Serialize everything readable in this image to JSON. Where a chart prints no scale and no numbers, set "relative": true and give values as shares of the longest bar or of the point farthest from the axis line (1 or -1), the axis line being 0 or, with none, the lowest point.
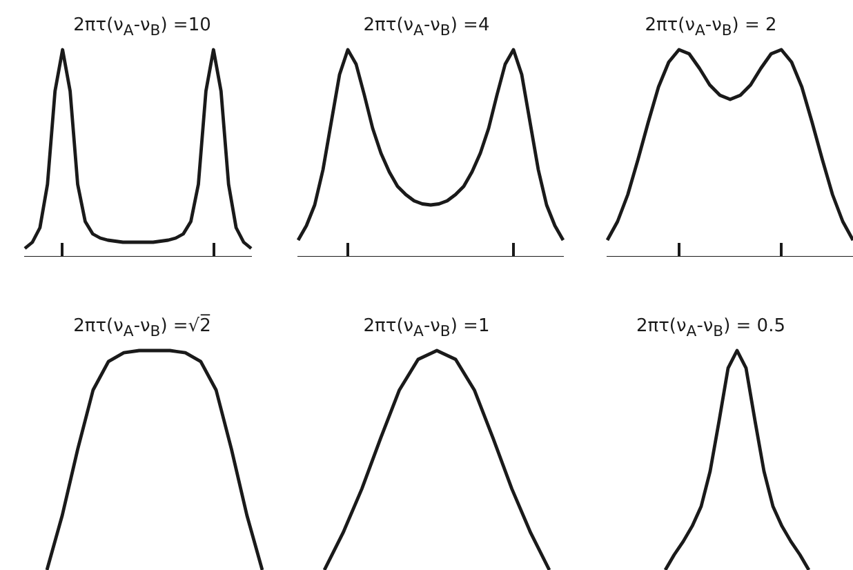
{
  "chart_data": [
    {
      "type": "line",
      "title": "2πτ(ν$_{A}$-ν$_{B}$) =10",
      "relative": true,
      "tick_labels": false,
      "grid": false,
      "legend": false,
      "marker": "none",
      "color": "#1a1a1a",
      "categories": [
        null,
        null,
        null,
        null,
        null,
        null,
        null,
        null,
        null,
        null,
        null,
        null,
        null,
        null,
        null,
        null,
        null,
        null,
        null,
        null,
        null,
        null,
        null,
        null,
        null,
        null,
        null,
        null,
        null,
        null,
        null
      ],
      "values": [
        0.04,
        0.07,
        0.14,
        0.35,
        0.8,
        1.0,
        0.8,
        0.35,
        0.17,
        0.11,
        0.09,
        0.08,
        0.075,
        0.07,
        0.07,
        0.07,
        0.07,
        0.07,
        0.075,
        0.08,
        0.09,
        0.11,
        0.17,
        0.35,
        0.8,
        1.0,
        0.8,
        0.35,
        0.14,
        0.07,
        0.04
      ]
    },
    {
      "type": "line",
      "title": "2πτ(ν$_{A}$-ν$_{B}$) =4",
      "relative": true,
      "tick_labels": false,
      "grid": false,
      "legend": false,
      "marker": "none",
      "color": "#1a1a1a",
      "categories": [
        null,
        null,
        null,
        null,
        null,
        null,
        null,
        null,
        null,
        null,
        null,
        null,
        null,
        null,
        null,
        null,
        null,
        null,
        null,
        null,
        null,
        null,
        null,
        null,
        null,
        null,
        null,
        null,
        null,
        null,
        null,
        null,
        null
      ],
      "values": [
        0.08,
        0.15,
        0.25,
        0.42,
        0.65,
        0.88,
        1.0,
        0.93,
        0.78,
        0.62,
        0.5,
        0.41,
        0.34,
        0.3,
        0.27,
        0.255,
        0.25,
        0.255,
        0.27,
        0.3,
        0.34,
        0.41,
        0.5,
        0.62,
        0.78,
        0.93,
        1.0,
        0.88,
        0.65,
        0.42,
        0.25,
        0.15,
        0.08
      ]
    },
    {
      "type": "line",
      "title": "2πτ(ν$_{A}$-ν$_{B}$) = 2",
      "relative": true,
      "tick_labels": false,
      "grid": false,
      "legend": false,
      "marker": "none",
      "color": "#1a1a1a",
      "categories": [
        null,
        null,
        null,
        null,
        null,
        null,
        null,
        null,
        null,
        null,
        null,
        null,
        null,
        null,
        null,
        null,
        null,
        null,
        null,
        null,
        null,
        null,
        null,
        null,
        null
      ],
      "values": [
        0.08,
        0.17,
        0.3,
        0.47,
        0.65,
        0.82,
        0.94,
        1.0,
        0.98,
        0.91,
        0.83,
        0.78,
        0.76,
        0.78,
        0.83,
        0.91,
        0.98,
        1.0,
        0.94,
        0.82,
        0.65,
        0.47,
        0.3,
        0.17,
        0.08
      ]
    },
    {
      "type": "line",
      "title": "2πτ(ν$_{A}$-ν$_{B}$) =√2̅",
      "relative": true,
      "tick_labels": false,
      "grid": false,
      "legend": false,
      "marker": "none",
      "color": "#1a1a1a",
      "categories": [
        null,
        null,
        null,
        null,
        null,
        null,
        null,
        null,
        null,
        null,
        null,
        null,
        null,
        null,
        null
      ],
      "values": [
        0,
        0.25,
        0.55,
        0.82,
        0.95,
        0.99,
        1.0,
        1.0,
        1.0,
        0.99,
        0.95,
        0.82,
        0.55,
        0.25,
        0
      ]
    },
    {
      "type": "line",
      "title": "2πτ(ν$_{A}$-ν$_{B}$) =1",
      "relative": true,
      "tick_labels": false,
      "grid": false,
      "legend": false,
      "marker": "none",
      "color": "#1a1a1a",
      "categories": [
        null,
        null,
        null,
        null,
        null,
        null,
        null,
        null,
        null,
        null,
        null,
        null,
        null
      ],
      "values": [
        0,
        0.17,
        0.37,
        0.6,
        0.82,
        0.96,
        1.0,
        0.96,
        0.82,
        0.6,
        0.37,
        0.17,
        0
      ]
    },
    {
      "type": "line",
      "title": "2πτ(ν$_{A}$-ν$_{B}$) = 0.5",
      "relative": true,
      "tick_labels": false,
      "grid": false,
      "legend": false,
      "marker": "none",
      "color": "#1a1a1a",
      "categories": [
        null,
        null,
        null,
        null,
        null,
        null,
        null,
        null,
        null,
        null,
        null,
        null,
        null,
        null,
        null,
        null,
        null
      ],
      "values": [
        0,
        0.07,
        0.13,
        0.2,
        0.29,
        0.45,
        0.68,
        0.92,
        1.0,
        0.92,
        0.68,
        0.45,
        0.29,
        0.2,
        0.13,
        0.07,
        0
      ]
    }
  ]
}
